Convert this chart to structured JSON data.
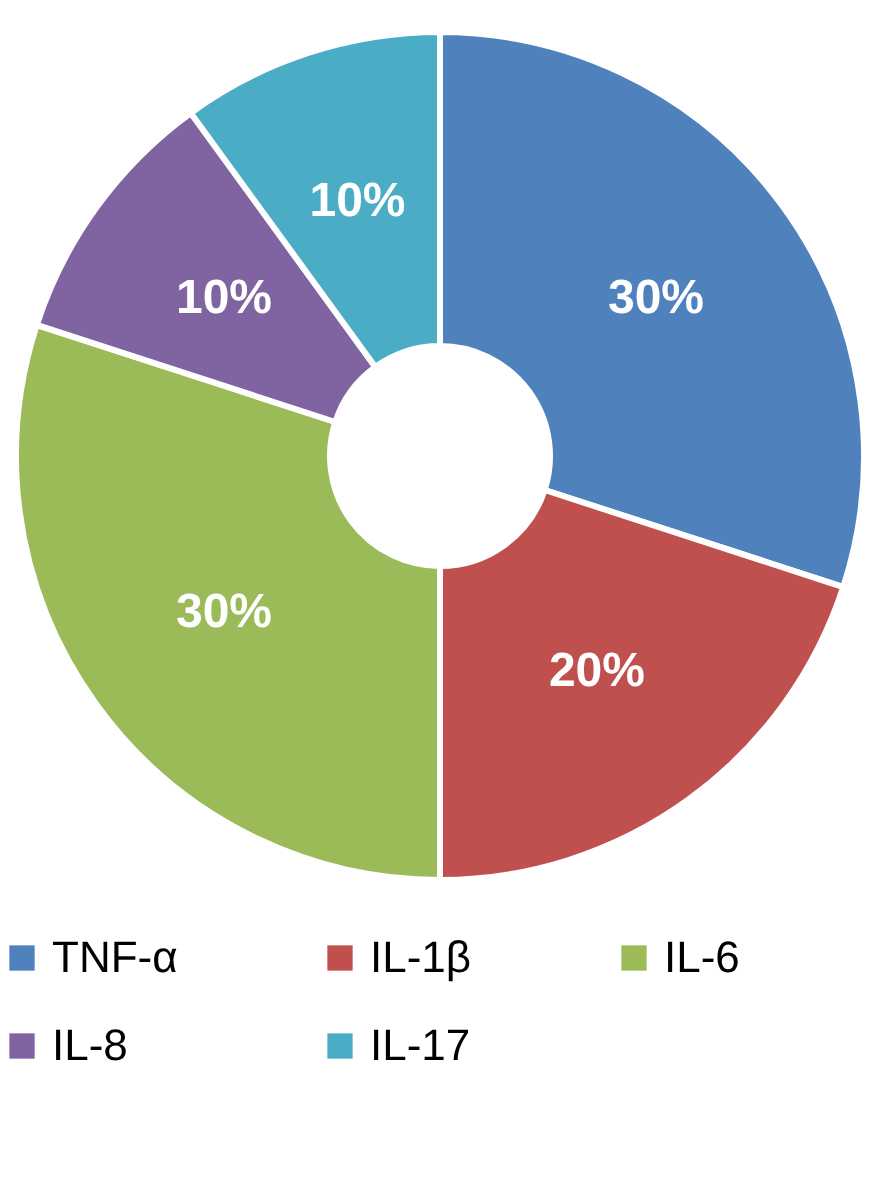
{
  "chart_data": {
    "type": "donut",
    "categories": [
      "TNF-α",
      "IL-1β",
      "IL-6",
      "IL-8",
      "IL-17"
    ],
    "values": [
      30,
      20,
      30,
      10,
      10
    ],
    "colors": [
      "#4f81bd",
      "#c0504d",
      "#9bbb59",
      "#8064a2",
      "#4bacc6"
    ],
    "value_labels": [
      "30%",
      "20%",
      "30%",
      "10%",
      "10%"
    ],
    "legend": "bottom"
  }
}
